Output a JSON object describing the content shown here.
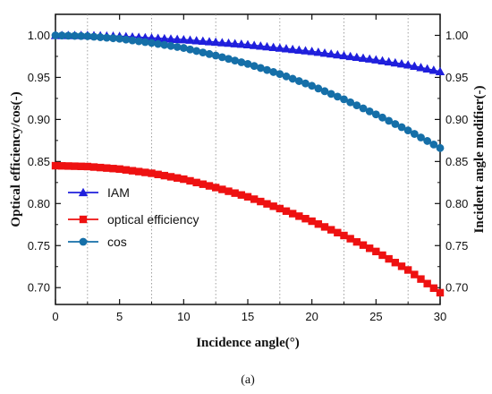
{
  "chart_data": {
    "type": "line",
    "xlabel": "Incidence angle(°)",
    "ylabel_left": "Optical efficiency/cos(-)",
    "ylabel_right": "Incident angle modifier(-)",
    "caption": "(a)",
    "xlim": [
      0,
      30
    ],
    "ylim_left": [
      0.68,
      1.025
    ],
    "ylim_right": [
      0.68,
      1.025
    ],
    "xticks": [
      0,
      5,
      10,
      15,
      20,
      25,
      30
    ],
    "yticks": [
      0.7,
      0.75,
      0.8,
      0.85,
      0.9,
      0.95,
      1.0
    ],
    "xtick_labels": [
      "0",
      "5",
      "10",
      "15",
      "20",
      "25",
      "30"
    ],
    "ytick_labels": [
      "0.70",
      "0.75",
      "0.80",
      "0.85",
      "0.90",
      "0.95",
      "1.00"
    ],
    "grid": "vertical dotted",
    "legend_position": "center-left",
    "series": [
      {
        "name": "IAM",
        "color": "#1f1fdc",
        "marker": "triangle",
        "x": [
          0,
          2.5,
          5,
          7.5,
          10,
          12.5,
          15,
          17.5,
          20,
          22.5,
          25,
          27.5,
          30
        ],
        "y": [
          1.0,
          1.0,
          0.999,
          0.997,
          0.995,
          0.992,
          0.989,
          0.985,
          0.981,
          0.976,
          0.971,
          0.965,
          0.957
        ]
      },
      {
        "name": "optical efficiency",
        "color": "#ee1111",
        "marker": "square",
        "x": [
          0,
          2.5,
          5,
          7.5,
          10,
          12.5,
          15,
          17.5,
          20,
          22.5,
          25,
          27.5,
          30
        ],
        "y": [
          0.845,
          0.844,
          0.841,
          0.836,
          0.829,
          0.819,
          0.808,
          0.794,
          0.779,
          0.762,
          0.743,
          0.721,
          0.694
        ]
      },
      {
        "name": "cos",
        "color": "#156fa8",
        "marker": "circle",
        "x": [
          0,
          2.5,
          5,
          7.5,
          10,
          12.5,
          15,
          17.5,
          20,
          22.5,
          25,
          27.5,
          30
        ],
        "y": [
          1.0,
          0.999,
          0.996,
          0.991,
          0.985,
          0.976,
          0.966,
          0.954,
          0.94,
          0.924,
          0.906,
          0.887,
          0.866
        ]
      }
    ]
  }
}
